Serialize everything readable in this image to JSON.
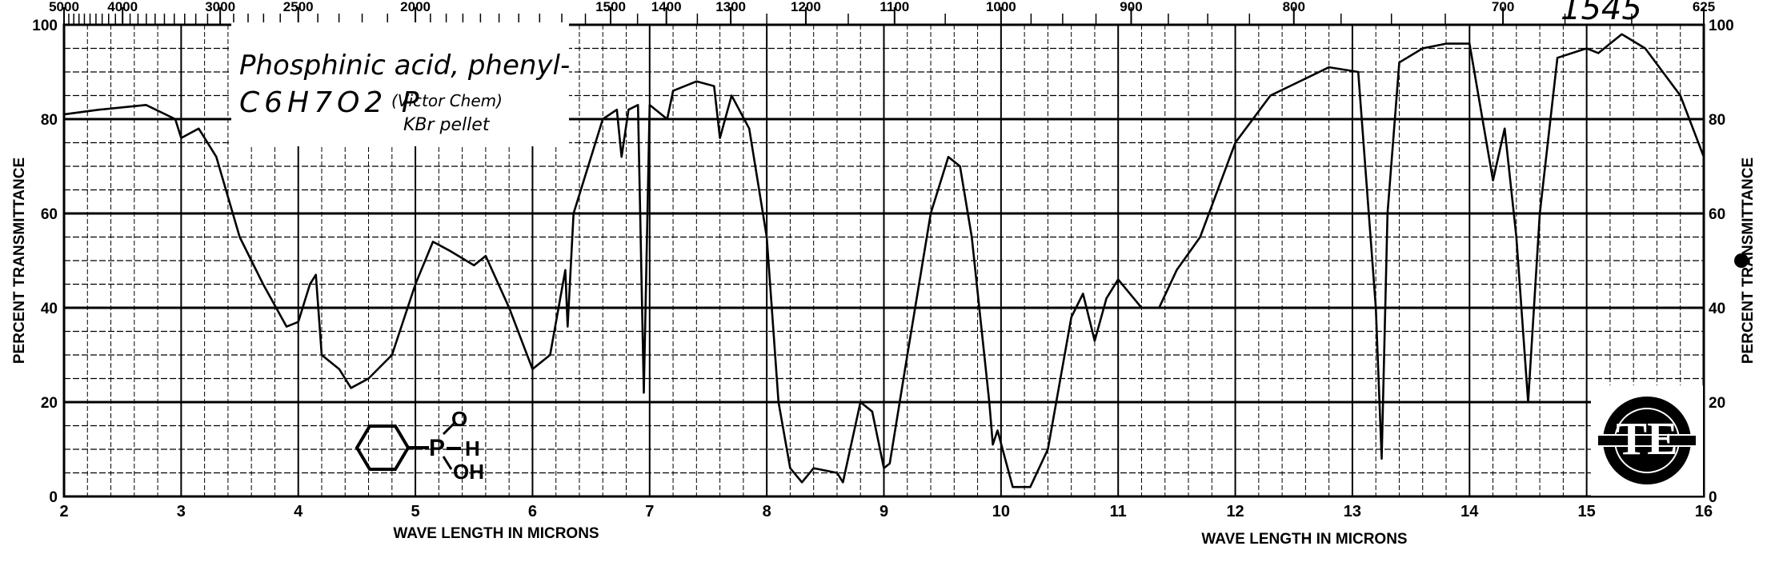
{
  "chart_data": {
    "type": "line",
    "xlabel": "WAVE LENGTH IN MICRONS",
    "ylabel": "PERCENT TRANSMITTANCE",
    "xlim": [
      2,
      16
    ],
    "ylim": [
      0,
      100
    ],
    "grid": true,
    "x_ticks": [
      2,
      3,
      4,
      5,
      6,
      7,
      8,
      9,
      10,
      11,
      12,
      13,
      14,
      15,
      16
    ],
    "y_ticks": [
      0,
      20,
      40,
      60,
      80,
      100
    ],
    "top_axis_ticks_cm": [
      5000,
      4000,
      3000,
      2500,
      2000,
      1500,
      1400,
      1300,
      1200,
      1100,
      1000,
      900,
      800,
      700,
      625
    ],
    "top_axis_labels": [
      "5000",
      "4000",
      "3000",
      "2500",
      "2000",
      "1500",
      "1400",
      "1300",
      "1200",
      "1100",
      "1000",
      "900",
      "800",
      "700",
      "625"
    ],
    "series": [
      {
        "x": [
          2.0,
          2.3,
          2.7,
          2.95,
          3.0,
          3.15,
          3.3,
          3.5,
          3.7,
          3.9,
          4.0,
          4.1,
          4.15,
          4.2,
          4.35,
          4.45,
          4.6,
          4.8,
          5.0,
          5.15,
          5.3,
          5.5,
          5.6,
          5.8,
          6.0,
          6.15,
          6.28,
          6.3,
          6.35,
          6.5,
          6.6,
          6.72,
          6.76,
          6.82,
          6.9,
          6.95,
          7.0,
          7.15,
          7.2,
          7.4,
          7.55,
          7.6,
          7.7,
          7.85,
          8.0,
          8.1,
          8.2,
          8.3,
          8.4,
          8.6,
          8.65,
          8.8,
          8.9,
          9.0,
          9.05,
          9.2,
          9.3,
          9.4,
          9.55,
          9.65,
          9.75,
          9.9,
          9.93,
          9.97,
          10.1,
          10.25,
          10.4,
          10.6,
          10.7,
          10.8,
          10.9,
          11.0,
          11.2,
          11.35,
          11.5,
          11.7,
          12.0,
          12.3,
          12.8,
          13.05,
          13.2,
          13.25,
          13.3,
          13.4,
          13.6,
          13.8,
          14.0,
          14.2,
          14.3,
          14.4,
          14.5,
          14.6,
          14.75,
          15.0,
          15.1,
          15.3,
          15.5,
          15.8,
          16.0
        ],
        "y": [
          81,
          82,
          83,
          80,
          76,
          78,
          72,
          55,
          45,
          36,
          37,
          45,
          47,
          30,
          27,
          23,
          25,
          30,
          45,
          54,
          52,
          49,
          51,
          40,
          27,
          30,
          48,
          36,
          60,
          72,
          80,
          82,
          72,
          82,
          83,
          22,
          83,
          80,
          86,
          88,
          87,
          76,
          85,
          78,
          55,
          20,
          6,
          3,
          6,
          5,
          3,
          20,
          18,
          6,
          7,
          30,
          45,
          60,
          72,
          70,
          55,
          20,
          11,
          14,
          2,
          2,
          10,
          38,
          43,
          33,
          42,
          46,
          40,
          40,
          48,
          55,
          75,
          85,
          91,
          90,
          40,
          8,
          60,
          92,
          95,
          96,
          96,
          67,
          78,
          55,
          20,
          60,
          93,
          95,
          94,
          98,
          95,
          85,
          72
        ]
      }
    ]
  },
  "annotations": {
    "compound_name": "Phosphinic acid, phenyl-",
    "formula": "C6H7O2 P",
    "source": "(Victor Chem)",
    "sample": "KBr pellet",
    "handwritten_number": "1545",
    "structure_labels": [
      "O",
      "P",
      "H",
      "OH"
    ],
    "logo_text": "TENNESSEE EASTMAN COMPANY"
  },
  "colors": {
    "ink": "#000000",
    "paper": "#ffffff"
  }
}
